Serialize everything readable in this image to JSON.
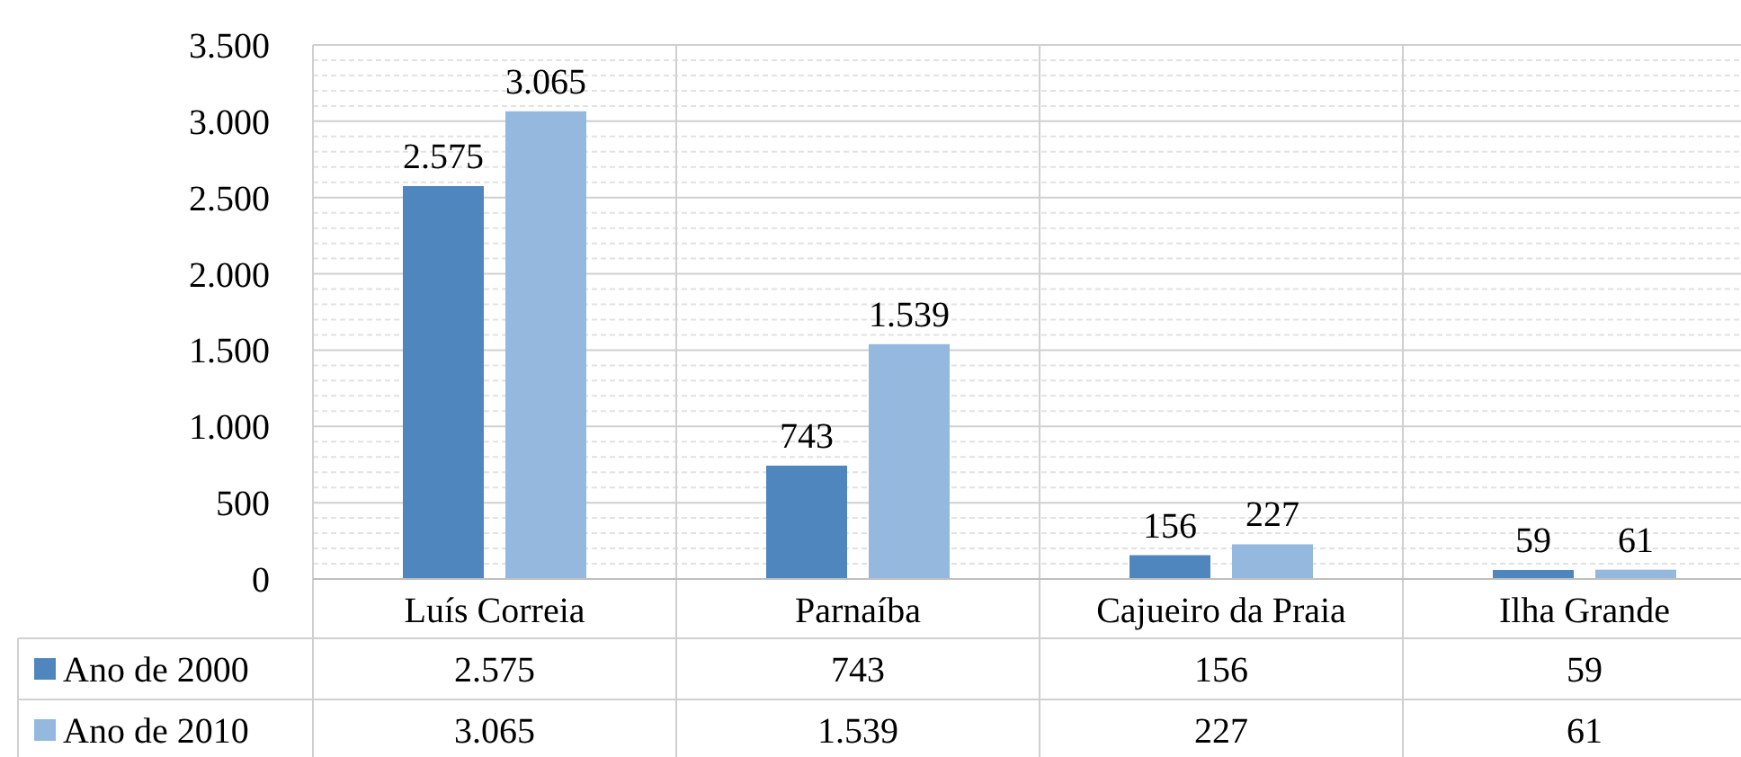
{
  "chart_data": {
    "type": "bar",
    "categories": [
      "Luís Correia",
      "Parnaíba",
      "Cajueiro da Praia",
      "Ilha Grande"
    ],
    "series": [
      {
        "name": "Ano de 2000",
        "color": "#4f86bd",
        "values": [
          2575,
          743,
          156,
          59
        ],
        "value_labels": [
          "2.575",
          "743",
          "156",
          "59"
        ]
      },
      {
        "name": "Ano de 2010",
        "color": "#95b8df",
        "values": [
          3065,
          1539,
          227,
          61
        ],
        "value_labels": [
          "3.065",
          "1.539",
          "227",
          "61"
        ]
      }
    ],
    "ylim": [
      0,
      3500
    ],
    "yticks": [
      0,
      500,
      {
        "value": 1000,
        "label": "1.000"
      },
      {
        "value": 1500,
        "label": "1.500"
      },
      {
        "value": 2000,
        "label": "2.000"
      },
      {
        "value": 2500,
        "label": "2.500"
      },
      {
        "value": 3000,
        "label": "3.000"
      },
      {
        "value": 3500,
        "label": "3.500"
      }
    ],
    "grid": "y",
    "legend": "bottom left"
  }
}
